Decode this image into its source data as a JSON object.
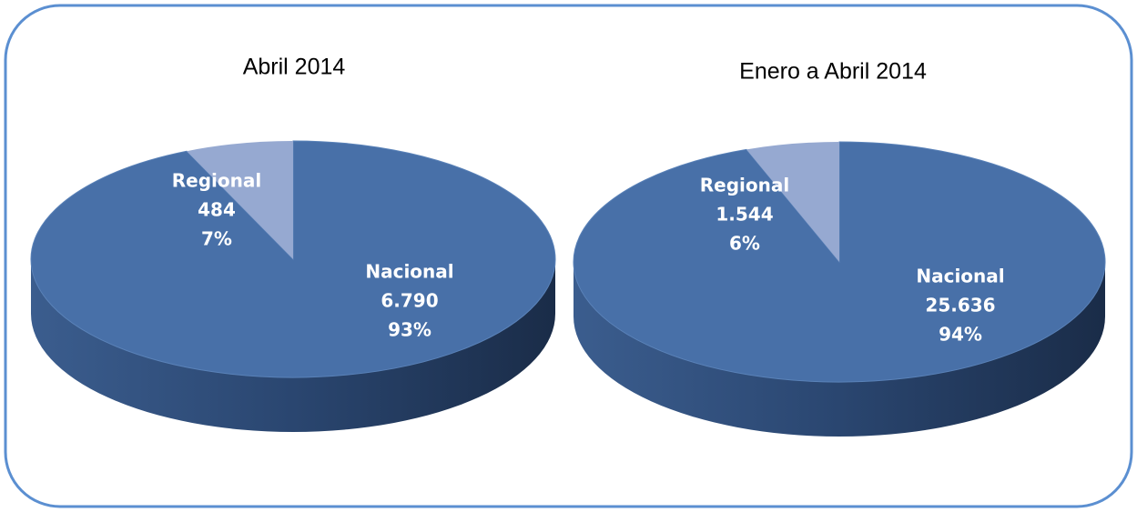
{
  "chart_data": [
    {
      "type": "pie",
      "title": "Abril 2014",
      "categories": [
        "Nacional",
        "Regional"
      ],
      "values": [
        6790,
        484
      ],
      "value_labels": [
        "6.790",
        "484"
      ],
      "percent_labels": [
        "93%",
        "7%"
      ],
      "colors": [
        "#4870a8",
        "#96a9d1"
      ]
    },
    {
      "type": "pie",
      "title": "Enero a Abril 2014",
      "categories": [
        "Nacional",
        "Regional"
      ],
      "values": [
        25636,
        1544
      ],
      "value_labels": [
        "25.636",
        "1.544"
      ],
      "percent_labels": [
        "94%",
        "6%"
      ],
      "colors": [
        "#4870a8",
        "#96a9d1"
      ]
    }
  ]
}
